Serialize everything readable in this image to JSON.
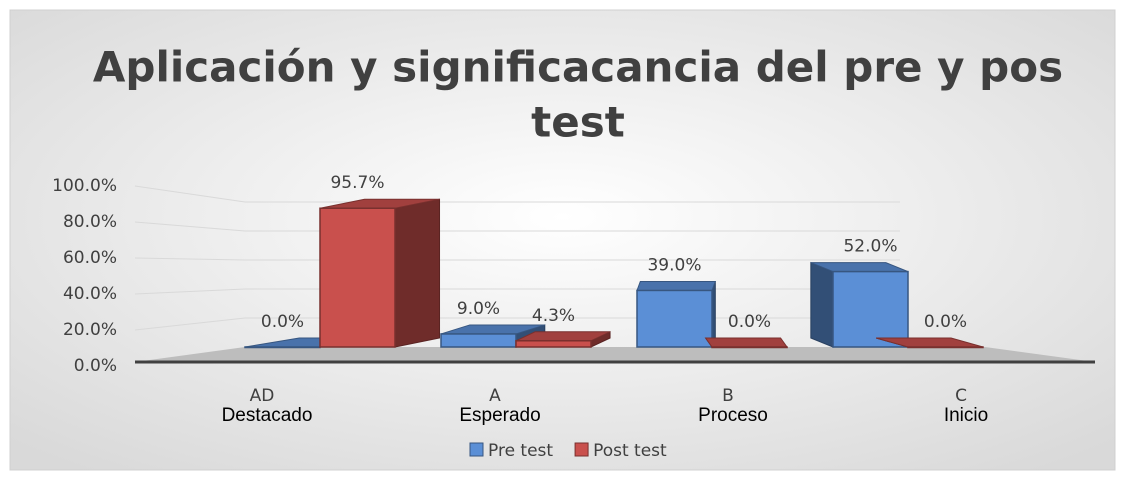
{
  "chart_data": {
    "type": "bar3d",
    "title": "Aplicación y significacancia del pre y pos test",
    "categories": [
      "AD",
      "A",
      "B",
      "C"
    ],
    "category_descriptions": [
      "Destacado",
      "Esperado",
      "Proceso",
      "Inicio"
    ],
    "series": [
      {
        "name": "Pre test",
        "color": "#5b8fd6",
        "values": [
          0,
          9,
          39,
          52
        ],
        "value_labels": [
          "0.0%",
          "9.0%",
          "39.0%",
          "52.0%"
        ]
      },
      {
        "name": "Post test",
        "color": "#c9504d",
        "values": [
          95.7,
          4.3,
          0,
          0
        ],
        "value_labels": [
          "95.7%",
          "4.3%",
          "0.0%",
          "0.0%"
        ]
      }
    ],
    "ylim": [
      0,
      100
    ],
    "yticks": [
      {
        "value": 0,
        "label": "0.0%"
      },
      {
        "value": 20,
        "label": "20.0%"
      },
      {
        "value": 40,
        "label": "40.0%"
      },
      {
        "value": 60,
        "label": "60.0%"
      },
      {
        "value": 80,
        "label": "80.0%"
      },
      {
        "value": 100,
        "label": "100.0%"
      }
    ],
    "grid": true,
    "legend": "bottom"
  }
}
